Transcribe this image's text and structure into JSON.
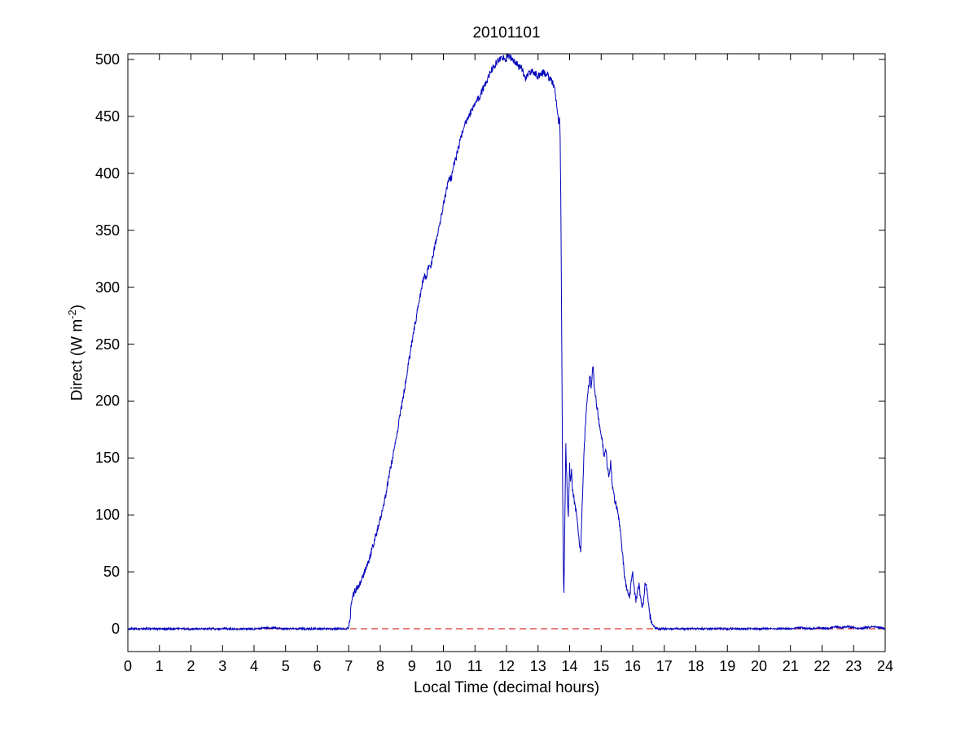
{
  "chart_data": {
    "type": "line",
    "title": "20101101",
    "xlabel": "Local Time (decimal hours)",
    "ylabel_prefix": "Direct (W m",
    "ylabel_sup": "-2",
    "ylabel_suffix": ")",
    "xlim": [
      0,
      24
    ],
    "ylim": [
      -20,
      505
    ],
    "xticks": [
      0,
      1,
      2,
      3,
      4,
      5,
      6,
      7,
      8,
      9,
      10,
      11,
      12,
      13,
      14,
      15,
      16,
      17,
      18,
      19,
      20,
      21,
      22,
      23,
      24
    ],
    "yticks": [
      0,
      50,
      100,
      150,
      200,
      250,
      300,
      350,
      400,
      450,
      500
    ],
    "grid": false,
    "legend": "none",
    "noise_amplitude": 3,
    "series": [
      {
        "name": "direct-irradiance",
        "color": "#0000bb",
        "style": "solid",
        "points": [
          [
            0,
            0
          ],
          [
            0.5,
            0
          ],
          [
            1,
            0
          ],
          [
            1.5,
            0
          ],
          [
            2,
            0
          ],
          [
            2.5,
            0
          ],
          [
            3,
            0
          ],
          [
            3.5,
            0
          ],
          [
            4,
            0
          ],
          [
            4.5,
            1
          ],
          [
            5,
            0
          ],
          [
            5.5,
            0
          ],
          [
            6,
            0
          ],
          [
            6.5,
            0
          ],
          [
            6.9,
            0
          ],
          [
            7.0,
            1
          ],
          [
            7.05,
            12
          ],
          [
            7.1,
            26
          ],
          [
            7.15,
            30
          ],
          [
            7.2,
            33
          ],
          [
            7.3,
            37
          ],
          [
            7.4,
            43
          ],
          [
            7.5,
            50
          ],
          [
            7.6,
            57
          ],
          [
            7.7,
            66
          ],
          [
            7.8,
            76
          ],
          [
            7.9,
            86
          ],
          [
            8.0,
            96
          ],
          [
            8.1,
            108
          ],
          [
            8.2,
            122
          ],
          [
            8.3,
            137
          ],
          [
            8.4,
            152
          ],
          [
            8.5,
            167
          ],
          [
            8.6,
            183
          ],
          [
            8.7,
            199
          ],
          [
            8.8,
            216
          ],
          [
            8.9,
            234
          ],
          [
            9.0,
            251
          ],
          [
            9.1,
            267
          ],
          [
            9.2,
            283
          ],
          [
            9.3,
            298
          ],
          [
            9.35,
            305
          ],
          [
            9.4,
            310
          ],
          [
            9.45,
            308
          ],
          [
            9.5,
            315
          ],
          [
            9.55,
            320
          ],
          [
            9.6,
            318
          ],
          [
            9.65,
            325
          ],
          [
            9.7,
            332
          ],
          [
            9.8,
            345
          ],
          [
            9.9,
            358
          ],
          [
            10.0,
            372
          ],
          [
            10.1,
            385
          ],
          [
            10.15,
            392
          ],
          [
            10.2,
            397
          ],
          [
            10.25,
            395
          ],
          [
            10.3,
            404
          ],
          [
            10.4,
            413
          ],
          [
            10.5,
            425
          ],
          [
            10.6,
            436
          ],
          [
            10.7,
            444
          ],
          [
            10.8,
            450
          ],
          [
            10.9,
            455
          ],
          [
            11.0,
            461
          ],
          [
            11.1,
            466
          ],
          [
            11.15,
            463
          ],
          [
            11.2,
            471
          ],
          [
            11.3,
            477
          ],
          [
            11.4,
            483
          ],
          [
            11.5,
            490
          ],
          [
            11.6,
            494
          ],
          [
            11.7,
            498
          ],
          [
            11.8,
            500
          ],
          [
            11.9,
            501
          ],
          [
            12.0,
            500
          ],
          [
            12.05,
            503
          ],
          [
            12.1,
            502
          ],
          [
            12.2,
            500
          ],
          [
            12.3,
            497
          ],
          [
            12.4,
            493
          ],
          [
            12.5,
            492
          ],
          [
            12.55,
            487
          ],
          [
            12.6,
            481
          ],
          [
            12.65,
            485
          ],
          [
            12.7,
            487
          ],
          [
            12.8,
            490
          ],
          [
            12.9,
            488
          ],
          [
            13.0,
            485
          ],
          [
            13.1,
            487
          ],
          [
            13.2,
            489
          ],
          [
            13.25,
            485
          ],
          [
            13.3,
            487
          ],
          [
            13.35,
            482
          ],
          [
            13.4,
            485
          ],
          [
            13.45,
            480
          ],
          [
            13.5,
            477
          ],
          [
            13.55,
            470
          ],
          [
            13.6,
            458
          ],
          [
            13.65,
            445
          ],
          [
            13.68,
            448
          ],
          [
            13.7,
            430
          ],
          [
            13.72,
            380
          ],
          [
            13.74,
            300
          ],
          [
            13.76,
            210
          ],
          [
            13.78,
            120
          ],
          [
            13.8,
            55
          ],
          [
            13.82,
            30
          ],
          [
            13.84,
            75
          ],
          [
            13.86,
            120
          ],
          [
            13.88,
            165
          ],
          [
            13.9,
            140
          ],
          [
            13.93,
            115
          ],
          [
            13.96,
            100
          ],
          [
            14.0,
            143
          ],
          [
            14.03,
            128
          ],
          [
            14.06,
            138
          ],
          [
            14.1,
            120
          ],
          [
            14.15,
            112
          ],
          [
            14.2,
            104
          ],
          [
            14.25,
            95
          ],
          [
            14.3,
            78
          ],
          [
            14.35,
            66
          ],
          [
            14.4,
            110
          ],
          [
            14.45,
            150
          ],
          [
            14.5,
            180
          ],
          [
            14.55,
            198
          ],
          [
            14.6,
            212
          ],
          [
            14.65,
            223
          ],
          [
            14.68,
            210
          ],
          [
            14.72,
            226
          ],
          [
            14.75,
            228
          ],
          [
            14.78,
            215
          ],
          [
            14.82,
            205
          ],
          [
            14.86,
            196
          ],
          [
            14.9,
            188
          ],
          [
            14.95,
            178
          ],
          [
            15.0,
            170
          ],
          [
            15.05,
            162
          ],
          [
            15.1,
            150
          ],
          [
            15.15,
            157
          ],
          [
            15.2,
            142
          ],
          [
            15.25,
            133
          ],
          [
            15.3,
            146
          ],
          [
            15.35,
            127
          ],
          [
            15.4,
            117
          ],
          [
            15.45,
            111
          ],
          [
            15.5,
            106
          ],
          [
            15.55,
            99
          ],
          [
            15.6,
            88
          ],
          [
            15.65,
            73
          ],
          [
            15.7,
            58
          ],
          [
            15.75,
            45
          ],
          [
            15.8,
            37
          ],
          [
            15.85,
            30
          ],
          [
            15.9,
            27
          ],
          [
            15.95,
            40
          ],
          [
            16.0,
            48
          ],
          [
            16.05,
            34
          ],
          [
            16.1,
            24
          ],
          [
            16.15,
            31
          ],
          [
            16.2,
            39
          ],
          [
            16.25,
            27
          ],
          [
            16.3,
            17
          ],
          [
            16.35,
            26
          ],
          [
            16.4,
            42
          ],
          [
            16.45,
            33
          ],
          [
            16.5,
            21
          ],
          [
            16.55,
            11
          ],
          [
            16.6,
            6
          ],
          [
            16.65,
            3
          ],
          [
            16.7,
            1
          ],
          [
            16.8,
            0
          ],
          [
            17,
            0
          ],
          [
            17.5,
            0
          ],
          [
            18,
            0
          ],
          [
            18.5,
            0
          ],
          [
            19,
            0
          ],
          [
            19.5,
            0
          ],
          [
            20,
            0
          ],
          [
            20.5,
            0
          ],
          [
            21,
            0
          ],
          [
            21.3,
            1
          ],
          [
            21.6,
            0
          ],
          [
            22,
            1
          ],
          [
            22.2,
            0
          ],
          [
            22.4,
            2
          ],
          [
            22.6,
            1
          ],
          [
            22.8,
            2
          ],
          [
            23,
            1
          ],
          [
            23.2,
            0
          ],
          [
            23.4,
            1
          ],
          [
            23.6,
            2
          ],
          [
            23.8,
            1
          ],
          [
            24,
            0
          ]
        ]
      },
      {
        "name": "zero-reference-line",
        "color": "#cc0000",
        "style": "dashed",
        "points": [
          [
            0,
            0
          ],
          [
            24,
            0
          ]
        ]
      }
    ]
  }
}
